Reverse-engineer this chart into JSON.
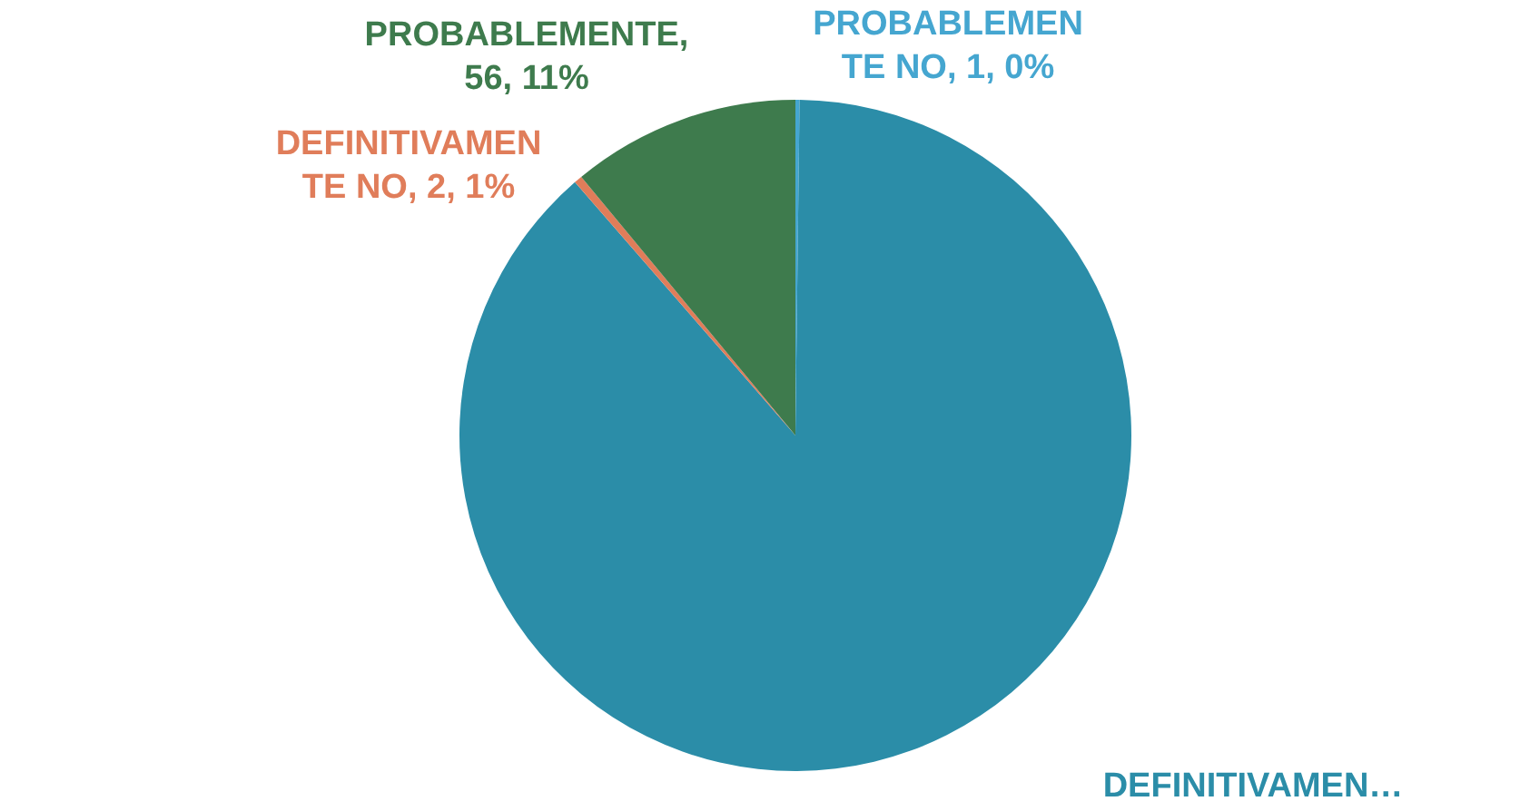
{
  "chart_data": {
    "type": "pie",
    "categories": [
      "PROBABLEMENTE NO",
      "DEFINITIVAMEN…",
      "DEFINITIVAMENTE NO",
      "PROBABLEMENTE"
    ],
    "values": [
      1,
      450,
      2,
      56
    ],
    "colors": [
      "#45a6d0",
      "#2b8da8",
      "#e07d5a",
      "#3e7b4d"
    ],
    "value_labels": [
      ", 1, 0%",
      null,
      ", 2, 1%",
      ", 56, 11%"
    ],
    "data_labels": true
  }
}
